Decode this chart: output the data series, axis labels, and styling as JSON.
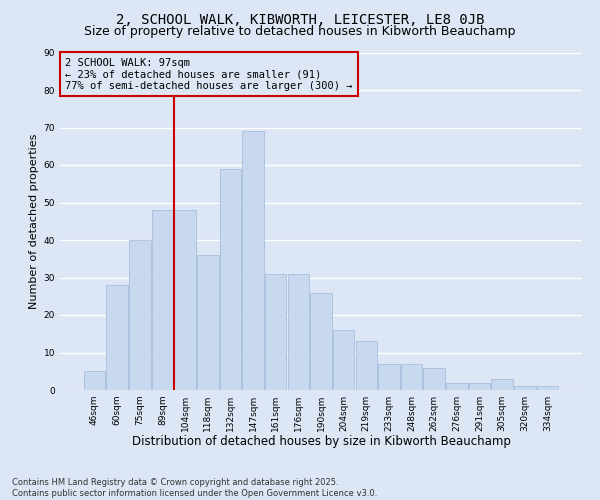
{
  "title": "2, SCHOOL WALK, KIBWORTH, LEICESTER, LE8 0JB",
  "subtitle": "Size of property relative to detached houses in Kibworth Beauchamp",
  "xlabel": "Distribution of detached houses by size in Kibworth Beauchamp",
  "ylabel": "Number of detached properties",
  "categories": [
    "46sqm",
    "60sqm",
    "75sqm",
    "89sqm",
    "104sqm",
    "118sqm",
    "132sqm",
    "147sqm",
    "161sqm",
    "176sqm",
    "190sqm",
    "204sqm",
    "219sqm",
    "233sqm",
    "248sqm",
    "262sqm",
    "276sqm",
    "291sqm",
    "305sqm",
    "320sqm",
    "334sqm"
  ],
  "values": [
    5,
    28,
    40,
    48,
    48,
    36,
    59,
    69,
    31,
    31,
    26,
    16,
    13,
    7,
    7,
    6,
    2,
    2,
    3,
    1,
    1
  ],
  "bar_color": "#c8d8ee",
  "bar_edge_color": "#a0b8d8",
  "bar_linewidth": 0.5,
  "vline_x": 3.5,
  "vline_color": "#cc0000",
  "vline_linewidth": 1.5,
  "annotation_text": "2 SCHOOL WALK: 97sqm\n← 23% of detached houses are smaller (91)\n77% of semi-detached houses are larger (300) →",
  "annotation_box_color": "#cc0000",
  "ylim": [
    0,
    90
  ],
  "yticks": [
    0,
    10,
    20,
    30,
    40,
    50,
    60,
    70,
    80,
    90
  ],
  "background_color": "#dce6f5",
  "grid_color": "#ffffff",
  "footer": "Contains HM Land Registry data © Crown copyright and database right 2025.\nContains public sector information licensed under the Open Government Licence v3.0.",
  "title_fontsize": 10,
  "subtitle_fontsize": 9,
  "xlabel_fontsize": 8.5,
  "ylabel_fontsize": 8,
  "tick_fontsize": 6.5,
  "annotation_fontsize": 7.5,
  "footer_fontsize": 6
}
